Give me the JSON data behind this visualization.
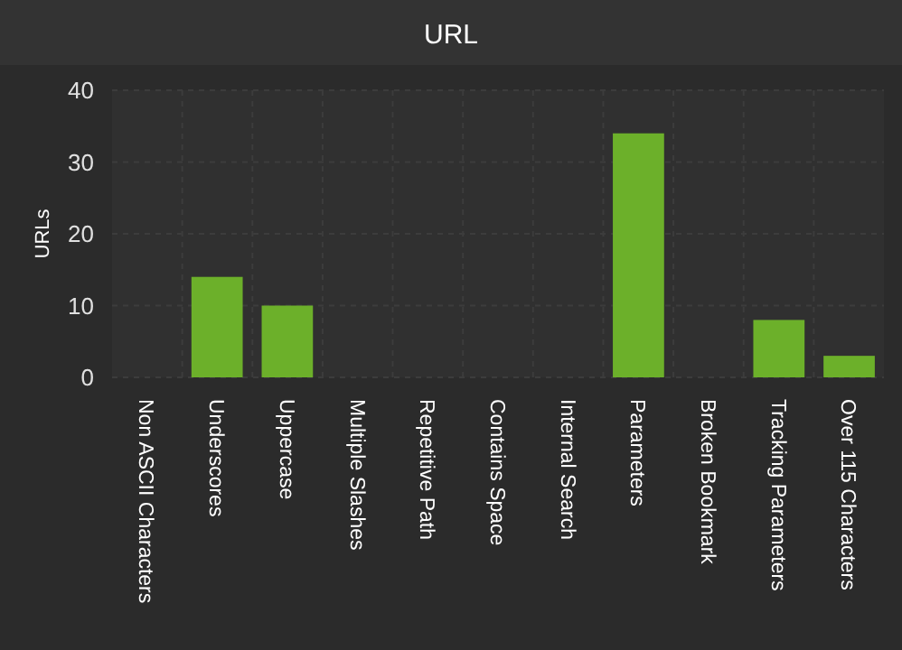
{
  "chart_data": {
    "type": "bar",
    "title": "URL",
    "ylabel": "URLs",
    "categories": [
      "Non ASCII Characters",
      "Underscores",
      "Uppercase",
      "Multiple Slashes",
      "Repetitive Path",
      "Contains Space",
      "Internal Search",
      "Parameters",
      "Broken Bookmark",
      "Tracking Parameters",
      "Over 115 Characters"
    ],
    "values": [
      0,
      14,
      10,
      0,
      0,
      0,
      0,
      34,
      0,
      8,
      3
    ],
    "color": "#6cb02a",
    "ylim": [
      0,
      40
    ],
    "yticks": [
      0,
      10,
      20,
      30,
      40
    ],
    "grid": true
  }
}
